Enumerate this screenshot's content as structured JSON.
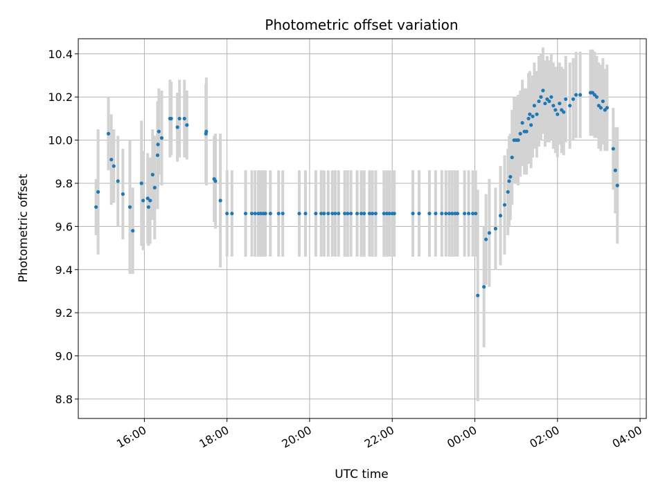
{
  "chart_data": {
    "type": "scatter",
    "title": "Photometric offset variation",
    "xlabel": "UTC time",
    "ylabel": "Photometric offset",
    "x_unit": "hours (UTC, continuing past midnight)",
    "xlim": [
      14.4,
      28.15
    ],
    "ylim": [
      8.71,
      10.47
    ],
    "x_ticks": [
      {
        "value": 16,
        "label": "16:00"
      },
      {
        "value": 18,
        "label": "18:00"
      },
      {
        "value": 20,
        "label": "20:00"
      },
      {
        "value": 22,
        "label": "22:00"
      },
      {
        "value": 24,
        "label": "00:00"
      },
      {
        "value": 26,
        "label": "02:00"
      },
      {
        "value": 28,
        "label": "04:00"
      }
    ],
    "y_ticks": [
      {
        "value": 8.8,
        "label": "8.8"
      },
      {
        "value": 9.0,
        "label": "9.0"
      },
      {
        "value": 9.2,
        "label": "9.2"
      },
      {
        "value": 9.4,
        "label": "9.4"
      },
      {
        "value": 9.6,
        "label": "9.6"
      },
      {
        "value": 9.8,
        "label": "9.8"
      },
      {
        "value": 10.0,
        "label": "10.0"
      },
      {
        "value": 10.2,
        "label": "10.2"
      },
      {
        "value": 10.4,
        "label": "10.4"
      }
    ],
    "grid": true,
    "point_color": "#1f77b4",
    "errorbar_color": "#d3d3d3",
    "points": [
      [
        14.83,
        9.69,
        0.13
      ],
      [
        14.88,
        9.76,
        0.29
      ],
      [
        15.13,
        10.03,
        0.17
      ],
      [
        15.2,
        9.91,
        0.21
      ],
      [
        15.26,
        9.88,
        0.17
      ],
      [
        15.36,
        9.81,
        0.21
      ],
      [
        15.48,
        9.75,
        0.21
      ],
      [
        15.65,
        9.69,
        0.31
      ],
      [
        15.72,
        9.58,
        0.2
      ],
      [
        15.93,
        9.8,
        0.29
      ],
      [
        15.97,
        9.72,
        0.23
      ],
      [
        16.08,
        9.73,
        0.21
      ],
      [
        16.1,
        9.69,
        0.18
      ],
      [
        16.14,
        9.72,
        0.2
      ],
      [
        16.2,
        9.84,
        0.21
      ],
      [
        16.25,
        9.78,
        0.24
      ],
      [
        16.32,
        9.93,
        0.25
      ],
      [
        16.33,
        9.98,
        0.2
      ],
      [
        16.35,
        10.04,
        0.2
      ],
      [
        16.42,
        10.01,
        0.22
      ],
      [
        16.62,
        10.1,
        0.18
      ],
      [
        16.65,
        10.1,
        0.17
      ],
      [
        16.8,
        10.06,
        0.16
      ],
      [
        16.85,
        10.1,
        0.18
      ],
      [
        16.97,
        10.1,
        0.18
      ],
      [
        17.03,
        10.07,
        0.16
      ],
      [
        17.49,
        10.03,
        0.23
      ],
      [
        17.5,
        10.04,
        0.25
      ],
      [
        17.69,
        9.82,
        0.2
      ],
      [
        17.72,
        9.81,
        0.22
      ],
      [
        17.84,
        9.72,
        0.31
      ],
      [
        18.0,
        9.66,
        0.2
      ],
      [
        18.12,
        9.66,
        0.2
      ],
      [
        18.45,
        9.66,
        0.2
      ],
      [
        18.6,
        9.66,
        0.2
      ],
      [
        18.68,
        9.66,
        0.2
      ],
      [
        18.76,
        9.66,
        0.2
      ],
      [
        18.82,
        9.66,
        0.2
      ],
      [
        18.88,
        9.66,
        0.2
      ],
      [
        18.93,
        9.66,
        0.2
      ],
      [
        19.05,
        9.66,
        0.2
      ],
      [
        19.25,
        9.66,
        0.2
      ],
      [
        19.35,
        9.66,
        0.2
      ],
      [
        19.75,
        9.66,
        0.2
      ],
      [
        19.9,
        9.66,
        0.2
      ],
      [
        20.15,
        9.66,
        0.2
      ],
      [
        20.28,
        9.66,
        0.2
      ],
      [
        20.35,
        9.66,
        0.2
      ],
      [
        20.45,
        9.66,
        0.2
      ],
      [
        20.55,
        9.66,
        0.2
      ],
      [
        20.62,
        9.66,
        0.2
      ],
      [
        20.7,
        9.66,
        0.2
      ],
      [
        20.85,
        9.66,
        0.2
      ],
      [
        20.92,
        9.66,
        0.2
      ],
      [
        21.0,
        9.66,
        0.2
      ],
      [
        21.15,
        9.66,
        0.2
      ],
      [
        21.25,
        9.66,
        0.2
      ],
      [
        21.32,
        9.66,
        0.2
      ],
      [
        21.45,
        9.66,
        0.2
      ],
      [
        21.52,
        9.66,
        0.2
      ],
      [
        21.6,
        9.66,
        0.2
      ],
      [
        21.8,
        9.66,
        0.2
      ],
      [
        21.87,
        9.66,
        0.2
      ],
      [
        21.93,
        9.66,
        0.2
      ],
      [
        22.0,
        9.66,
        0.2
      ],
      [
        22.05,
        9.66,
        0.2
      ],
      [
        22.5,
        9.66,
        0.2
      ],
      [
        22.65,
        9.66,
        0.2
      ],
      [
        22.9,
        9.66,
        0.2
      ],
      [
        23.05,
        9.66,
        0.2
      ],
      [
        23.2,
        9.66,
        0.2
      ],
      [
        23.3,
        9.66,
        0.2
      ],
      [
        23.38,
        9.66,
        0.2
      ],
      [
        23.45,
        9.66,
        0.2
      ],
      [
        23.52,
        9.66,
        0.2
      ],
      [
        23.58,
        9.66,
        0.2
      ],
      [
        23.75,
        9.66,
        0.2
      ],
      [
        23.85,
        9.66,
        0.2
      ],
      [
        23.95,
        9.66,
        0.2
      ],
      [
        24.02,
        9.66,
        0.2
      ],
      [
        24.07,
        9.28,
        0.49
      ],
      [
        24.22,
        9.32,
        0.28
      ],
      [
        24.27,
        9.54,
        0.21
      ],
      [
        24.35,
        9.57,
        0.25
      ],
      [
        24.5,
        9.59,
        0.19
      ],
      [
        24.62,
        9.65,
        0.23
      ],
      [
        24.72,
        9.7,
        0.23
      ],
      [
        24.8,
        9.76,
        0.2
      ],
      [
        24.83,
        9.81,
        0.21
      ],
      [
        24.86,
        9.83,
        0.2
      ],
      [
        24.9,
        9.92,
        0.22
      ],
      [
        24.95,
        10.0,
        0.2
      ],
      [
        25.0,
        10.0,
        0.2
      ],
      [
        25.05,
        10.0,
        0.21
      ],
      [
        25.1,
        10.03,
        0.2
      ],
      [
        25.15,
        10.08,
        0.2
      ],
      [
        25.2,
        10.04,
        0.2
      ],
      [
        25.25,
        10.04,
        0.2
      ],
      [
        25.3,
        10.1,
        0.21
      ],
      [
        25.33,
        10.12,
        0.2
      ],
      [
        25.36,
        10.07,
        0.2
      ],
      [
        25.4,
        10.11,
        0.19
      ],
      [
        25.44,
        10.16,
        0.2
      ],
      [
        25.5,
        10.12,
        0.2
      ],
      [
        25.55,
        10.18,
        0.21
      ],
      [
        25.6,
        10.2,
        0.2
      ],
      [
        25.65,
        10.23,
        0.2
      ],
      [
        25.7,
        10.17,
        0.2
      ],
      [
        25.75,
        10.19,
        0.2
      ],
      [
        25.8,
        10.18,
        0.19
      ],
      [
        25.85,
        10.2,
        0.2
      ],
      [
        25.9,
        10.16,
        0.2
      ],
      [
        25.95,
        10.14,
        0.2
      ],
      [
        26.0,
        10.12,
        0.2
      ],
      [
        26.05,
        10.17,
        0.19
      ],
      [
        26.1,
        10.14,
        0.2
      ],
      [
        26.15,
        10.13,
        0.2
      ],
      [
        26.2,
        10.19,
        0.2
      ],
      [
        26.3,
        10.16,
        0.2
      ],
      [
        26.38,
        10.19,
        0.19
      ],
      [
        26.45,
        10.21,
        0.2
      ],
      [
        26.55,
        10.21,
        0.2
      ],
      [
        26.8,
        10.22,
        0.2
      ],
      [
        26.85,
        10.22,
        0.2
      ],
      [
        26.9,
        10.21,
        0.2
      ],
      [
        26.95,
        10.2,
        0.19
      ],
      [
        27.0,
        10.16,
        0.2
      ],
      [
        27.05,
        10.15,
        0.2
      ],
      [
        27.1,
        10.18,
        0.2
      ],
      [
        27.15,
        10.14,
        0.19
      ],
      [
        27.2,
        10.15,
        0.2
      ],
      [
        27.35,
        9.96,
        0.19
      ],
      [
        27.4,
        9.86,
        0.2
      ],
      [
        27.45,
        9.79,
        0.27
      ]
    ]
  }
}
